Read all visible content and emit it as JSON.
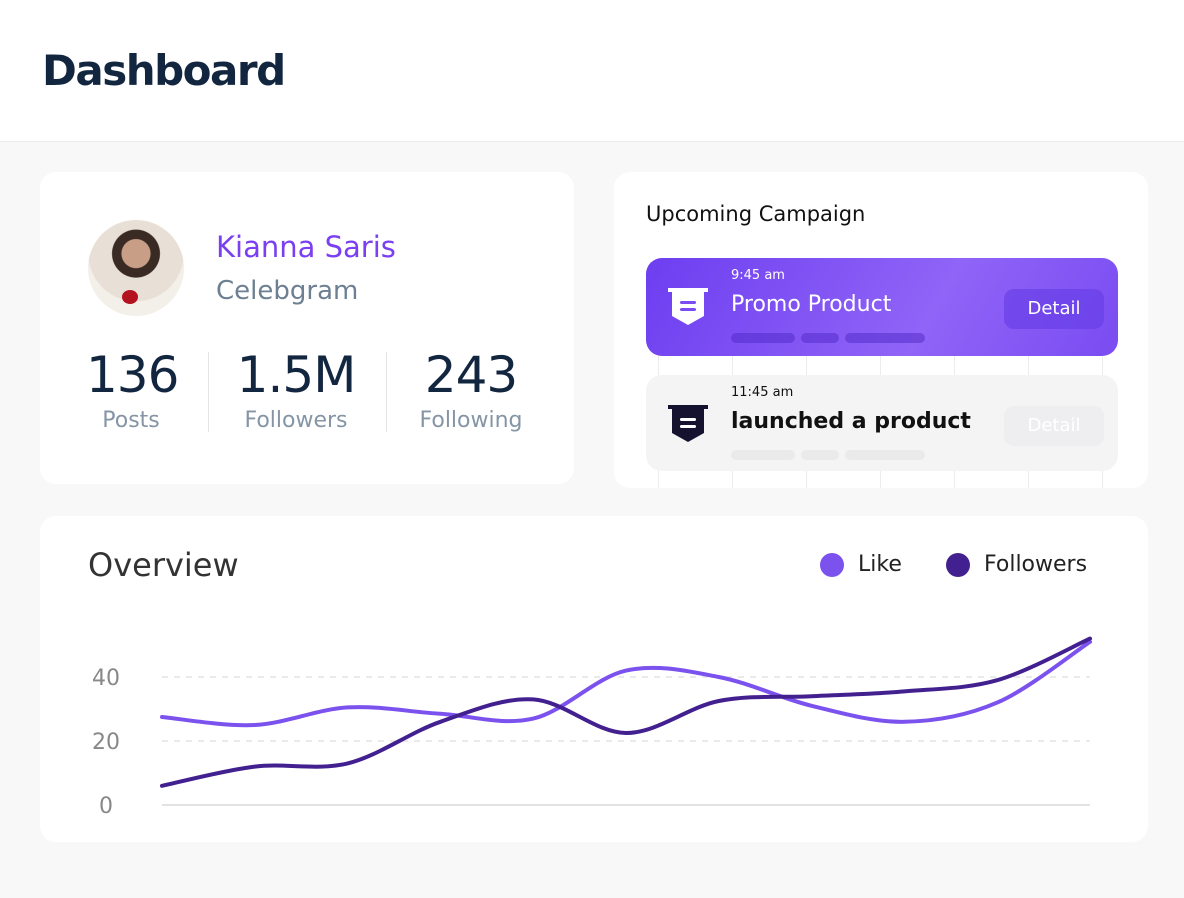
{
  "header": {
    "title": "Dashboard"
  },
  "profile": {
    "name": "Kianna Saris",
    "role": "Celebgram",
    "stats": [
      {
        "value": "136",
        "label": "Posts"
      },
      {
        "value": "1.5M",
        "label": "Followers"
      },
      {
        "value": "243",
        "label": "Following"
      }
    ]
  },
  "campaign": {
    "title": "Upcoming Campaign",
    "items": [
      {
        "time": "9:45 am",
        "title": "Promo Product",
        "button": "Detail",
        "icon": "bookmark-list-icon"
      },
      {
        "time": "11:45 am",
        "title": "launched a product",
        "button": "Detail",
        "icon": "bookmark-list-icon"
      }
    ]
  },
  "overview": {
    "title": "Overview"
  },
  "chart_data": {
    "type": "line",
    "title": "Overview",
    "yticks": [
      "0",
      "20",
      "40"
    ],
    "ylim": [
      0,
      55
    ],
    "grid": true,
    "legend_placement": "top-right",
    "series": [
      {
        "name": "Like",
        "color": "#7b52ee",
        "values": [
          27.5,
          25,
          30.5,
          28.5,
          27,
          42,
          40,
          31,
          26,
          32,
          51
        ]
      },
      {
        "name": "Followers",
        "color": "#43208f",
        "values": [
          6,
          12,
          13,
          26,
          33,
          22.5,
          32.5,
          34,
          35.5,
          39,
          52
        ]
      }
    ]
  }
}
